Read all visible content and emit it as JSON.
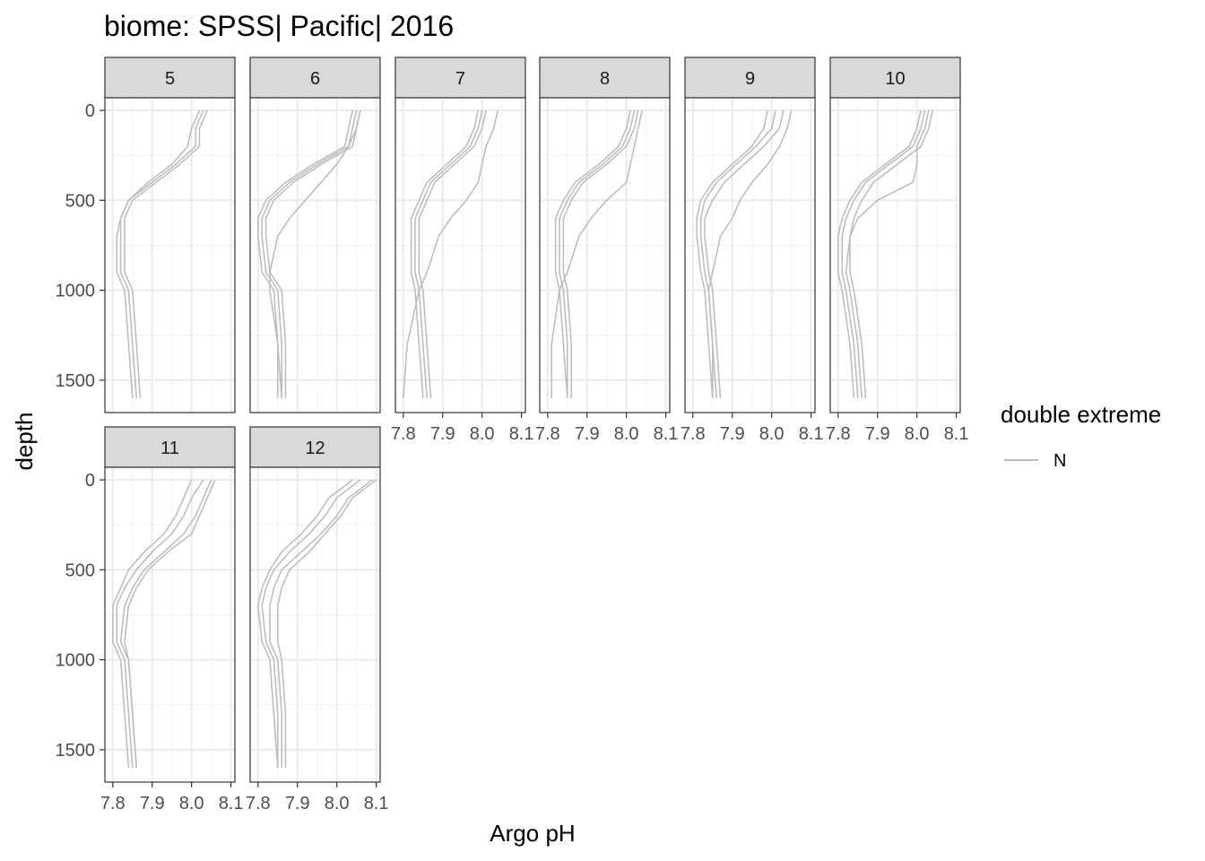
{
  "chart_data": {
    "type": "line",
    "title": "biome: SPSS| Pacific| 2016",
    "xlabel": "Argo pH",
    "ylabel": "depth",
    "xlim": [
      7.78,
      8.11
    ],
    "ylim": [
      1680,
      -70
    ],
    "y_reversed": true,
    "x_ticks": [
      7.8,
      7.9,
      8.0,
      8.1
    ],
    "x_tick_labels": [
      "7.8",
      "7.9",
      "8.0",
      "8.1"
    ],
    "y_ticks": [
      0,
      500,
      1000,
      1500
    ],
    "y_tick_labels": [
      "0",
      "500",
      "1000",
      "1500"
    ],
    "grid": true,
    "line_color": "#bebebe",
    "legend": {
      "title": "double extreme",
      "entries": [
        {
          "label": "N",
          "color": "#bebebe"
        }
      ],
      "position": "right"
    },
    "panels": [
      {
        "label": "5",
        "series": [
          {
            "x": [
              8.03,
              8.01,
              8.01,
              7.96,
              7.9,
              7.84,
              7.82,
              7.82,
              7.82,
              7.84,
              7.85,
              7.86
            ],
            "y": [
              0,
              100,
              200,
              300,
              400,
              500,
              600,
              700,
              900,
              1000,
              1300,
              1600
            ]
          },
          {
            "x": [
              8.02,
              8.0,
              7.99,
              7.95,
              7.89,
              7.84,
              7.82,
              7.81,
              7.81,
              7.83,
              7.84,
              7.85
            ],
            "y": [
              0,
              100,
              200,
              300,
              400,
              500,
              600,
              700,
              900,
              1000,
              1300,
              1600
            ]
          },
          {
            "x": [
              8.04,
              8.02,
              8.02,
              7.97,
              7.91,
              7.85,
              7.83,
              7.83,
              7.83,
              7.85,
              7.86,
              7.87
            ],
            "y": [
              0,
              100,
              200,
              300,
              400,
              500,
              600,
              700,
              900,
              1000,
              1300,
              1600
            ]
          }
        ]
      },
      {
        "label": "6",
        "series": [
          {
            "x": [
              8.05,
              8.04,
              8.03,
              7.95,
              7.88,
              7.83,
              7.81,
              7.81,
              7.82,
              7.85,
              7.86,
              7.86
            ],
            "y": [
              0,
              100,
              200,
              300,
              400,
              500,
              600,
              700,
              900,
              1000,
              1300,
              1600
            ]
          },
          {
            "x": [
              8.04,
              8.03,
              8.02,
              7.94,
              7.87,
              7.82,
              7.8,
              7.8,
              7.81,
              7.84,
              7.85,
              7.85
            ],
            "y": [
              0,
              100,
              200,
              300,
              400,
              500,
              600,
              700,
              900,
              1000,
              1300,
              1600
            ]
          },
          {
            "x": [
              8.06,
              8.05,
              8.04,
              7.96,
              7.89,
              7.84,
              7.82,
              7.82,
              7.83,
              7.86,
              7.87,
              7.87
            ],
            "y": [
              0,
              100,
              200,
              300,
              400,
              500,
              600,
              700,
              900,
              1000,
              1300,
              1600
            ]
          },
          {
            "x": [
              8.06,
              8.05,
              8.03,
              8.0,
              7.96,
              7.92,
              7.88,
              7.85,
              7.83,
              7.83,
              7.85,
              7.86
            ],
            "y": [
              0,
              100,
              200,
              300,
              400,
              500,
              600,
              700,
              900,
              1000,
              1300,
              1600
            ]
          }
        ]
      },
      {
        "label": "7",
        "series": [
          {
            "x": [
              8.0,
              7.99,
              7.97,
              7.92,
              7.87,
              7.85,
              7.83,
              7.83,
              7.83,
              7.84,
              7.85,
              7.86
            ],
            "y": [
              0,
              100,
              200,
              300,
              400,
              500,
              600,
              700,
              900,
              1000,
              1300,
              1600
            ]
          },
          {
            "x": [
              8.01,
              8.0,
              7.98,
              7.93,
              7.88,
              7.86,
              7.84,
              7.84,
              7.84,
              7.85,
              7.86,
              7.87
            ],
            "y": [
              0,
              100,
              200,
              300,
              400,
              500,
              600,
              700,
              900,
              1000,
              1300,
              1600
            ]
          },
          {
            "x": [
              7.99,
              7.98,
              7.96,
              7.91,
              7.86,
              7.84,
              7.82,
              7.82,
              7.82,
              7.83,
              7.84,
              7.85
            ],
            "y": [
              0,
              100,
              200,
              300,
              400,
              500,
              600,
              700,
              900,
              1000,
              1300,
              1600
            ]
          },
          {
            "x": [
              8.04,
              8.03,
              8.01,
              8.0,
              7.99,
              7.96,
              7.92,
              7.89,
              7.86,
              7.84,
              7.81,
              7.8
            ],
            "y": [
              0,
              100,
              200,
              300,
              400,
              500,
              600,
              700,
              900,
              1000,
              1300,
              1600
            ]
          }
        ]
      },
      {
        "label": "8",
        "series": [
          {
            "x": [
              8.02,
              8.01,
              7.99,
              7.94,
              7.88,
              7.85,
              7.83,
              7.83,
              7.83,
              7.84,
              7.85,
              7.85
            ],
            "y": [
              0,
              100,
              200,
              300,
              400,
              500,
              600,
              700,
              900,
              1000,
              1300,
              1600
            ]
          },
          {
            "x": [
              8.01,
              8.0,
              7.98,
              7.93,
              7.87,
              7.84,
              7.82,
              7.82,
              7.82,
              7.83,
              7.84,
              7.85
            ],
            "y": [
              0,
              100,
              200,
              300,
              400,
              500,
              600,
              700,
              900,
              1000,
              1300,
              1600
            ]
          },
          {
            "x": [
              8.03,
              8.02,
              8.0,
              7.95,
              7.89,
              7.86,
              7.84,
              7.84,
              7.84,
              7.85,
              7.86,
              7.86
            ],
            "y": [
              0,
              100,
              200,
              300,
              400,
              500,
              600,
              700,
              900,
              1000,
              1300,
              1600
            ]
          },
          {
            "x": [
              8.04,
              8.03,
              8.02,
              8.01,
              8.0,
              7.95,
              7.91,
              7.88,
              7.85,
              7.83,
              7.81,
              7.81
            ],
            "y": [
              0,
              100,
              200,
              300,
              400,
              500,
              600,
              700,
              900,
              1000,
              1300,
              1600
            ]
          }
        ]
      },
      {
        "label": "9",
        "series": [
          {
            "x": [
              8.01,
              8.0,
              7.96,
              7.91,
              7.86,
              7.83,
              7.82,
              7.82,
              7.83,
              7.84,
              7.85,
              7.86
            ],
            "y": [
              0,
              100,
              200,
              300,
              400,
              500,
              600,
              700,
              900,
              1000,
              1300,
              1600
            ]
          },
          {
            "x": [
              8.03,
              8.02,
              7.98,
              7.93,
              7.88,
              7.85,
              7.83,
              7.83,
              7.84,
              7.85,
              7.86,
              7.87
            ],
            "y": [
              0,
              100,
              200,
              300,
              400,
              500,
              600,
              700,
              900,
              1000,
              1300,
              1600
            ]
          },
          {
            "x": [
              7.99,
              7.98,
              7.95,
              7.9,
              7.85,
              7.82,
              7.81,
              7.81,
              7.82,
              7.83,
              7.84,
              7.85
            ],
            "y": [
              0,
              100,
              200,
              300,
              400,
              500,
              600,
              700,
              900,
              1000,
              1300,
              1600
            ]
          },
          {
            "x": [
              8.05,
              8.04,
              8.02,
              7.99,
              7.95,
              7.92,
              7.9,
              7.87,
              7.85,
              7.84,
              7.85,
              7.85
            ],
            "y": [
              0,
              100,
              200,
              300,
              400,
              500,
              600,
              700,
              900,
              1000,
              1300,
              1600
            ]
          }
        ]
      },
      {
        "label": "10",
        "series": [
          {
            "x": [
              8.02,
              8.01,
              7.99,
              7.93,
              7.87,
              7.84,
              7.82,
              7.81,
              7.81,
              7.82,
              7.84,
              7.85
            ],
            "y": [
              0,
              100,
              200,
              300,
              400,
              500,
              600,
              700,
              900,
              1000,
              1300,
              1600
            ]
          },
          {
            "x": [
              8.01,
              8.0,
              7.98,
              7.92,
              7.86,
              7.83,
              7.81,
              7.8,
              7.8,
              7.81,
              7.83,
              7.84
            ],
            "y": [
              0,
              100,
              200,
              300,
              400,
              500,
              600,
              700,
              900,
              1000,
              1300,
              1600
            ]
          },
          {
            "x": [
              8.04,
              8.03,
              8.01,
              7.95,
              7.89,
              7.86,
              7.84,
              7.83,
              7.83,
              7.84,
              7.86,
              7.87
            ],
            "y": [
              0,
              100,
              200,
              300,
              400,
              500,
              600,
              700,
              900,
              1000,
              1300,
              1600
            ]
          },
          {
            "x": [
              8.03,
              8.02,
              8.0,
              8.0,
              7.99,
              7.9,
              7.85,
              7.83,
              7.82,
              7.83,
              7.85,
              7.86
            ],
            "y": [
              0,
              100,
              200,
              300,
              400,
              500,
              600,
              700,
              900,
              1000,
              1300,
              1600
            ]
          }
        ]
      },
      {
        "label": "11",
        "series": [
          {
            "x": [
              8.03,
              8.0,
              7.98,
              7.95,
              7.9,
              7.86,
              7.83,
              7.81,
              7.81,
              7.83,
              7.84,
              7.85
            ],
            "y": [
              0,
              100,
              200,
              300,
              400,
              500,
              600,
              700,
              900,
              1000,
              1300,
              1600
            ]
          },
          {
            "x": [
              8.05,
              8.03,
              8.01,
              7.98,
              7.93,
              7.88,
              7.85,
              7.83,
              7.82,
              7.84,
              7.85,
              7.86
            ],
            "y": [
              0,
              100,
              200,
              300,
              400,
              500,
              600,
              700,
              900,
              1000,
              1300,
              1600
            ]
          },
          {
            "x": [
              8.0,
              7.98,
              7.96,
              7.93,
              7.88,
              7.84,
              7.82,
              7.8,
              7.8,
              7.82,
              7.83,
              7.84
            ],
            "y": [
              0,
              100,
              200,
              300,
              400,
              500,
              600,
              700,
              900,
              1000,
              1300,
              1600
            ]
          },
          {
            "x": [
              8.06,
              8.04,
              8.02,
              8.0,
              7.94,
              7.89,
              7.86,
              7.84,
              7.83,
              7.84,
              7.85,
              7.86
            ],
            "y": [
              0,
              100,
              200,
              300,
              400,
              500,
              600,
              700,
              900,
              1000,
              1300,
              1600
            ]
          }
        ]
      },
      {
        "label": "12",
        "series": [
          {
            "x": [
              8.06,
              8.0,
              7.97,
              7.93,
              7.88,
              7.84,
              7.82,
              7.81,
              7.82,
              7.84,
              7.85,
              7.85
            ],
            "y": [
              0,
              100,
              200,
              300,
              400,
              500,
              600,
              700,
              900,
              1000,
              1300,
              1600
            ]
          },
          {
            "x": [
              8.09,
              8.03,
              8.0,
              7.96,
              7.91,
              7.86,
              7.84,
              7.83,
              7.83,
              7.85,
              7.86,
              7.86
            ],
            "y": [
              0,
              100,
              200,
              300,
              400,
              500,
              600,
              700,
              900,
              1000,
              1300,
              1600
            ]
          },
          {
            "x": [
              8.04,
              7.98,
              7.95,
              7.91,
              7.86,
              7.83,
              7.81,
              7.8,
              7.81,
              7.83,
              7.84,
              7.85
            ],
            "y": [
              0,
              100,
              200,
              300,
              400,
              500,
              600,
              700,
              900,
              1000,
              1300,
              1600
            ]
          },
          {
            "x": [
              8.1,
              8.04,
              8.01,
              7.97,
              7.93,
              7.88,
              7.86,
              7.85,
              7.85,
              7.86,
              7.87,
              7.87
            ],
            "y": [
              0,
              100,
              200,
              300,
              400,
              500,
              600,
              700,
              900,
              1000,
              1300,
              1600
            ]
          }
        ]
      }
    ]
  }
}
